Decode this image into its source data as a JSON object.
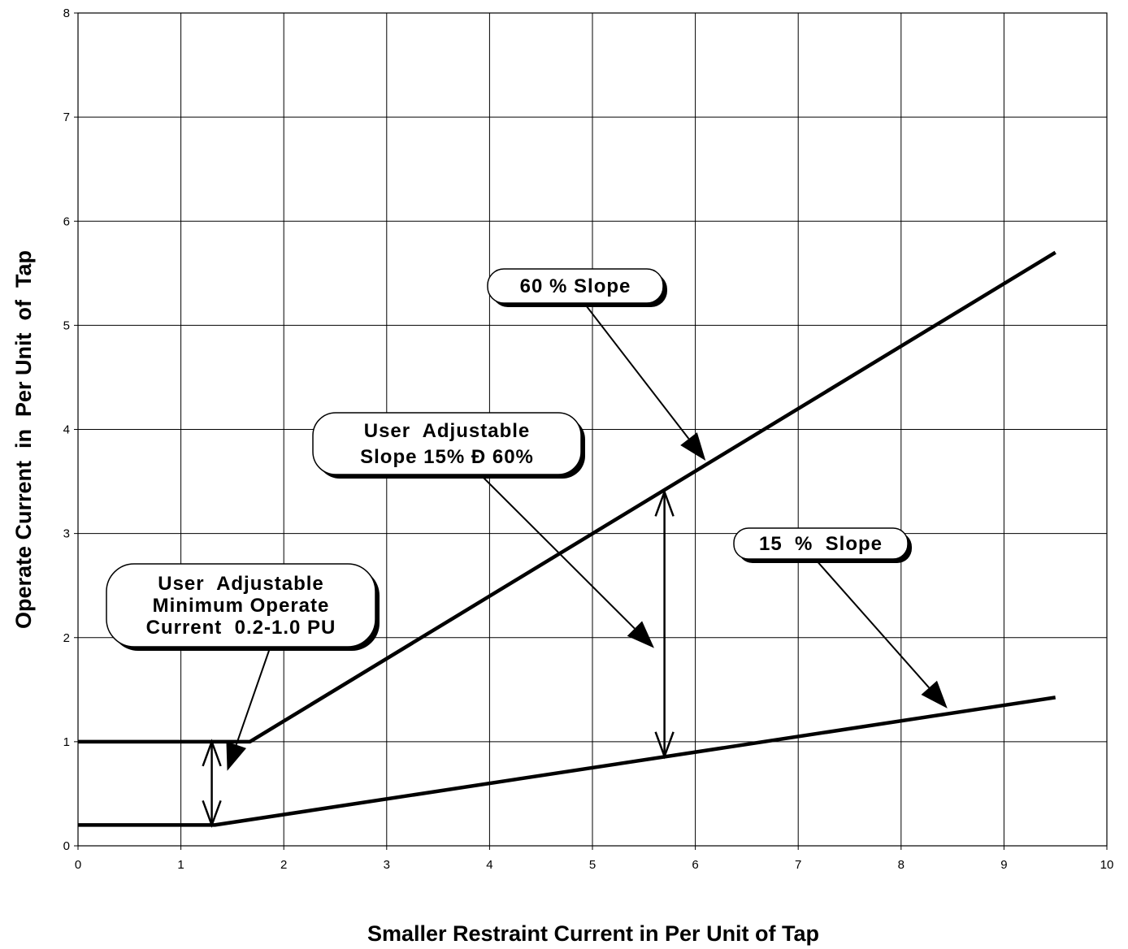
{
  "chart_data": {
    "type": "line",
    "title": "",
    "xlabel": "Smaller Restraint Current in Per Unit of Tap",
    "ylabel": "Operate Current  in  Per Unit  of  Tap",
    "xlim": [
      0,
      10
    ],
    "ylim": [
      0,
      8
    ],
    "x_ticks": [
      "0",
      "1",
      "2",
      "3",
      "4",
      "5",
      "6",
      "7",
      "8",
      "9",
      "10"
    ],
    "y_ticks": [
      "0",
      "1",
      "2",
      "3",
      "4",
      "5",
      "6",
      "7",
      "8"
    ],
    "grid": true,
    "legend": "none",
    "series": [
      {
        "x": [
          0,
          1.6,
          1.67,
          9.5
        ],
        "y": [
          1.0,
          1.0,
          1.0,
          5.7
        ],
        "color": "#000000"
      },
      {
        "x": [
          0,
          1.33,
          9.5
        ],
        "y": [
          0.2,
          0.2,
          1.425
        ],
        "color": "#000000"
      }
    ],
    "annotations": [
      {
        "lines": [
          "60 % Slope"
        ],
        "target": [
          6.1,
          3.7
        ]
      },
      {
        "lines": [
          "User  Adjustable",
          "Slope 15% Ð 60%"
        ],
        "target": [
          5.6,
          1.9
        ]
      },
      {
        "lines": [
          "15  %  Slope"
        ],
        "target": [
          8.45,
          1.32
        ]
      },
      {
        "lines": [
          "User  Adjustable",
          "Minimum Operate",
          "Current  0.2-1.0 PU"
        ],
        "target": [
          1.45,
          0.72
        ]
      }
    ],
    "dimension_arrows": [
      {
        "x": 1.3,
        "y_from": 0.2,
        "y_to": 1.0
      },
      {
        "x": 5.7,
        "y_from": 0.86,
        "y_to": 3.4
      }
    ]
  }
}
